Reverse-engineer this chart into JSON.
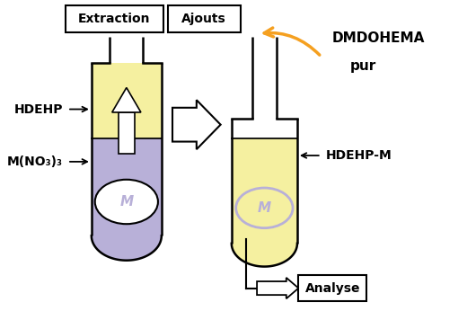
{
  "bg_color": "#ffffff",
  "yellow_color": "#f5f0a0",
  "purple_color": "#b8b0d8",
  "tube_border": "#000000",
  "label_hdehp": "HDEHP",
  "label_mno3": "M(NO₃)₃",
  "label_hdehp_m": "HDEHP-M",
  "label_m1": "M",
  "label_m2": "M",
  "label_extraction": "Extraction",
  "label_ajouts": "Ajouts",
  "label_dmdohema": "DMDOHEMA",
  "label_pur": "pur",
  "label_analyse": "Analyse",
  "arrow_color": "#f5a020",
  "figsize": [
    5.2,
    3.46
  ],
  "dpi": 100
}
